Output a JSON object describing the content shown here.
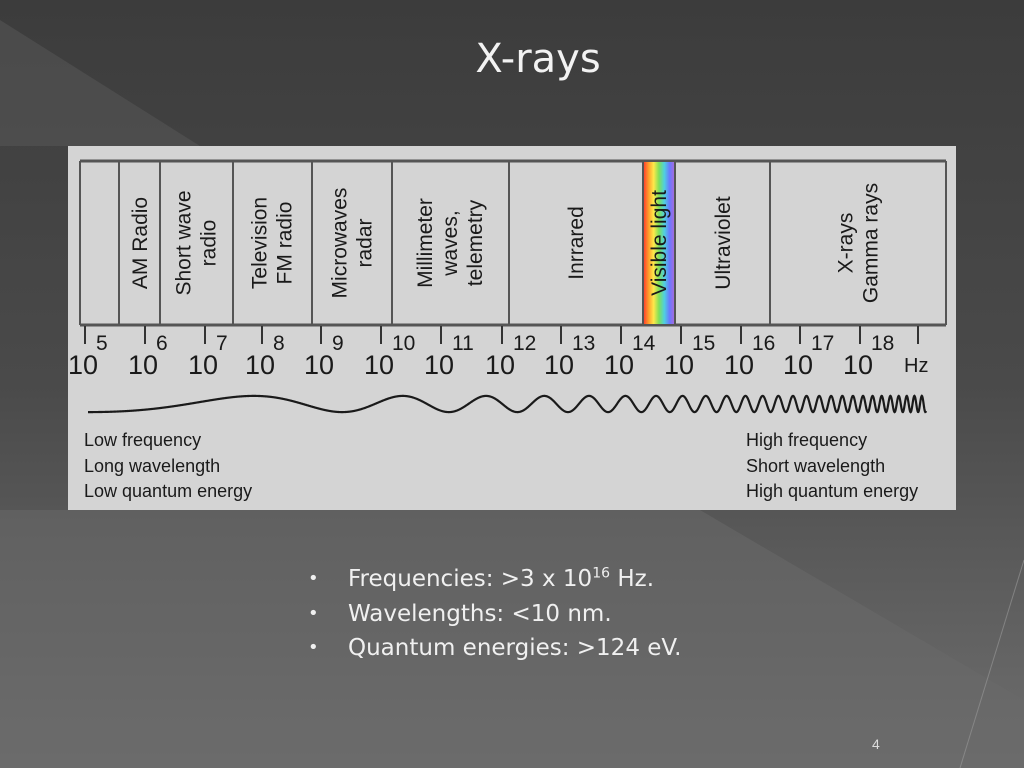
{
  "slide": {
    "title": "X-rays",
    "page_number": "4"
  },
  "spectrum": {
    "bands": [
      {
        "id": "am",
        "lines": [
          "AM Radio"
        ]
      },
      {
        "id": "shortwave",
        "lines": [
          "Short wave",
          "radio"
        ]
      },
      {
        "id": "tv",
        "lines": [
          "Television",
          "FM radio"
        ]
      },
      {
        "id": "microwave",
        "lines": [
          "Microwaves",
          "radar"
        ]
      },
      {
        "id": "millimeter",
        "lines": [
          "Millimeter",
          "waves,",
          "telemetry"
        ]
      },
      {
        "id": "infrared",
        "lines": [
          "Inrrared"
        ]
      },
      {
        "id": "visible",
        "lines": [
          "Visible light"
        ]
      },
      {
        "id": "uv",
        "lines": [
          "Ultraviolet"
        ]
      },
      {
        "id": "xray",
        "lines": [
          "X-rays",
          "Gamma rays"
        ]
      }
    ],
    "scale": {
      "base": "10",
      "exponents": [
        "5",
        "6",
        "7",
        "8",
        "9",
        "10",
        "11",
        "12",
        "13",
        "14",
        "15",
        "16",
        "17",
        "18"
      ],
      "unit": "Hz"
    },
    "low_end": [
      "Low frequency",
      "Long wavelength",
      "Low quantum energy"
    ],
    "high_end": [
      "High frequency",
      "Short wavelength",
      "High quantum energy"
    ],
    "colors": {
      "panel": "#d4d4d4",
      "ink": "#1a1a1a",
      "visible_gradient": [
        "#ff3030",
        "#ff9a2a",
        "#ffe84a",
        "#7ee05a",
        "#4fd0e0",
        "#6a78ff",
        "#b06ad8"
      ]
    }
  },
  "facts": {
    "bullet": "•",
    "frequency_prefix": "Frequencies: >3 x 10",
    "frequency_exp": "16",
    "frequency_suffix": " Hz.",
    "wavelength": "Wavelengths: <10 nm.",
    "energy": "Quantum energies: >124 eV."
  }
}
